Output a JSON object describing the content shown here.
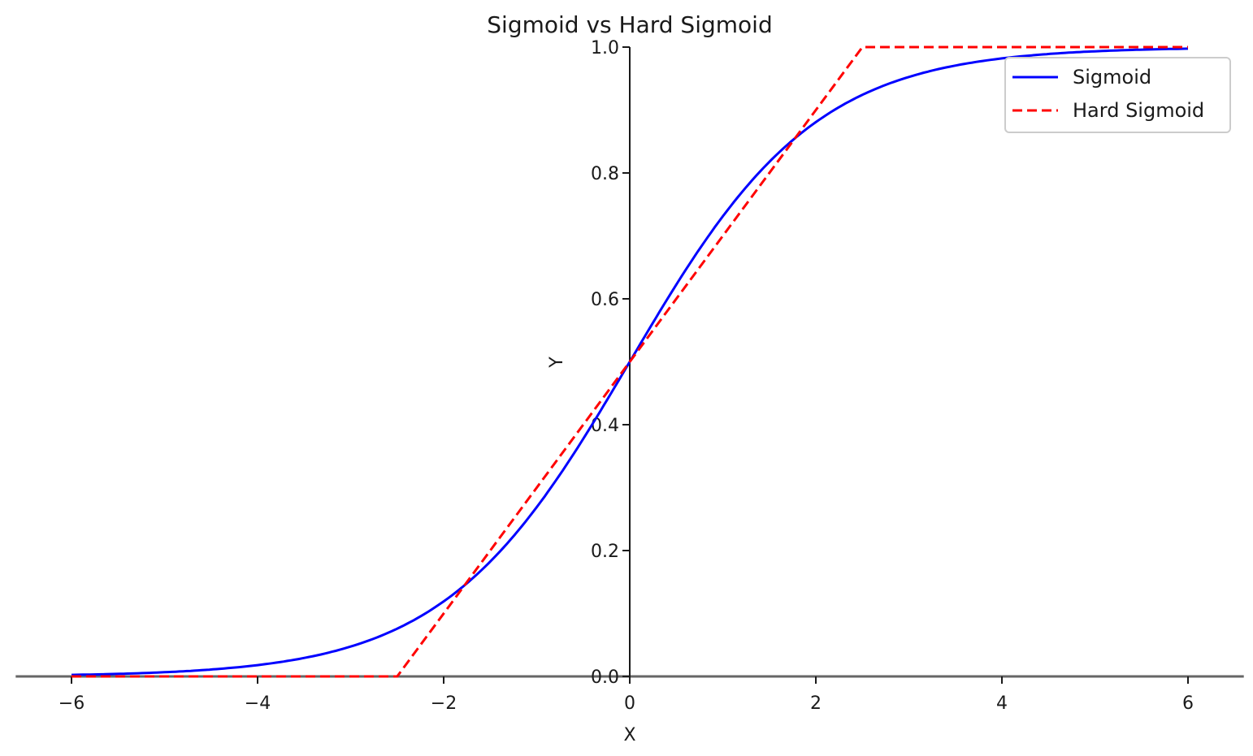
{
  "chart_data": {
    "type": "line",
    "title": "Sigmoid vs Hard Sigmoid",
    "xlabel": "X",
    "ylabel": "Y",
    "xlim": [
      -6.6,
      6.6
    ],
    "ylim": [
      0.0,
      1.0
    ],
    "xticks": [
      -6,
      -4,
      -2,
      0,
      2,
      4,
      6
    ],
    "xtick_labels": [
      "−6",
      "−4",
      "−2",
      "0",
      "2",
      "4",
      "6"
    ],
    "yticks": [
      0.0,
      0.2,
      0.4,
      0.6,
      0.8,
      1.0
    ],
    "ytick_labels": [
      "0.0",
      "0.2",
      "0.4",
      "0.6",
      "0.8",
      "1.0"
    ],
    "grid": false,
    "legend_position": "top-right",
    "series": [
      {
        "name": "Sigmoid",
        "style": "solid",
        "color": "#0000ff",
        "x": [
          -6,
          -5.5,
          -5,
          -4.5,
          -4,
          -3.5,
          -3,
          -2.5,
          -2,
          -1.5,
          -1,
          -0.5,
          0,
          0.5,
          1,
          1.5,
          2,
          2.5,
          3,
          3.5,
          4,
          4.5,
          5,
          5.5,
          6
        ],
        "y": [
          0.0025,
          0.0041,
          0.0067,
          0.011,
          0.018,
          0.0293,
          0.0474,
          0.0759,
          0.1192,
          0.1824,
          0.2689,
          0.3775,
          0.5,
          0.6225,
          0.7311,
          0.8176,
          0.8808,
          0.9241,
          0.9526,
          0.9707,
          0.982,
          0.989,
          0.9933,
          0.9959,
          0.9975
        ]
      },
      {
        "name": "Hard Sigmoid",
        "style": "dashed",
        "color": "#ff0000",
        "x": [
          -6,
          -2.5,
          2.5,
          6
        ],
        "y": [
          0.0,
          0.0,
          1.0,
          1.0
        ]
      }
    ]
  }
}
